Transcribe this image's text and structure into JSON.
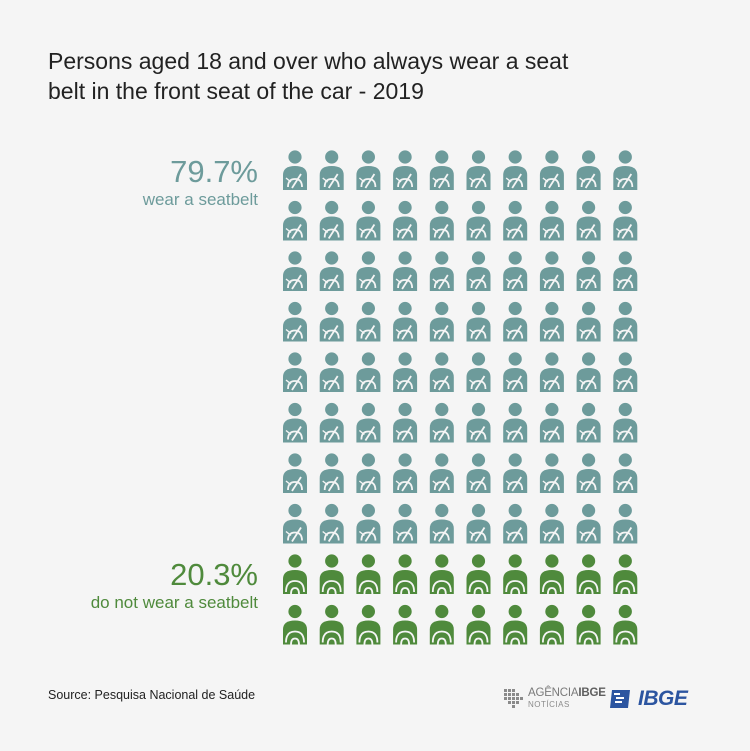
{
  "title": "Persons aged 18 and over who always wear a seat belt in the front seat of the car - 2019",
  "labels": {
    "wear_pct": "79.7%",
    "wear_desc": "wear a seatbelt",
    "not_pct": "20.3%",
    "not_desc": "do not wear a seatbelt"
  },
  "source": "Source: Pesquisa Nacional de Saúde",
  "logos": {
    "agencia_word": "AGÊNCIA",
    "agencia_ibge": "IBGE",
    "agencia_sub": "NOTÍCIAS",
    "ibge": "IBGE"
  },
  "colors": {
    "wear": "#6d9b9b",
    "not_wear": "#4f8a3c",
    "brand": "#2c55a0"
  },
  "chart_data": {
    "type": "pictogram",
    "total_icons": 100,
    "grid": {
      "rows": 10,
      "columns": 10
    },
    "categories": [
      {
        "name": "wear a seatbelt",
        "value": 79.7,
        "icons": 80,
        "color": "#6d9b9b"
      },
      {
        "name": "do not wear a seatbelt",
        "value": 20.3,
        "icons": 20,
        "color": "#4f8a3c"
      }
    ]
  }
}
